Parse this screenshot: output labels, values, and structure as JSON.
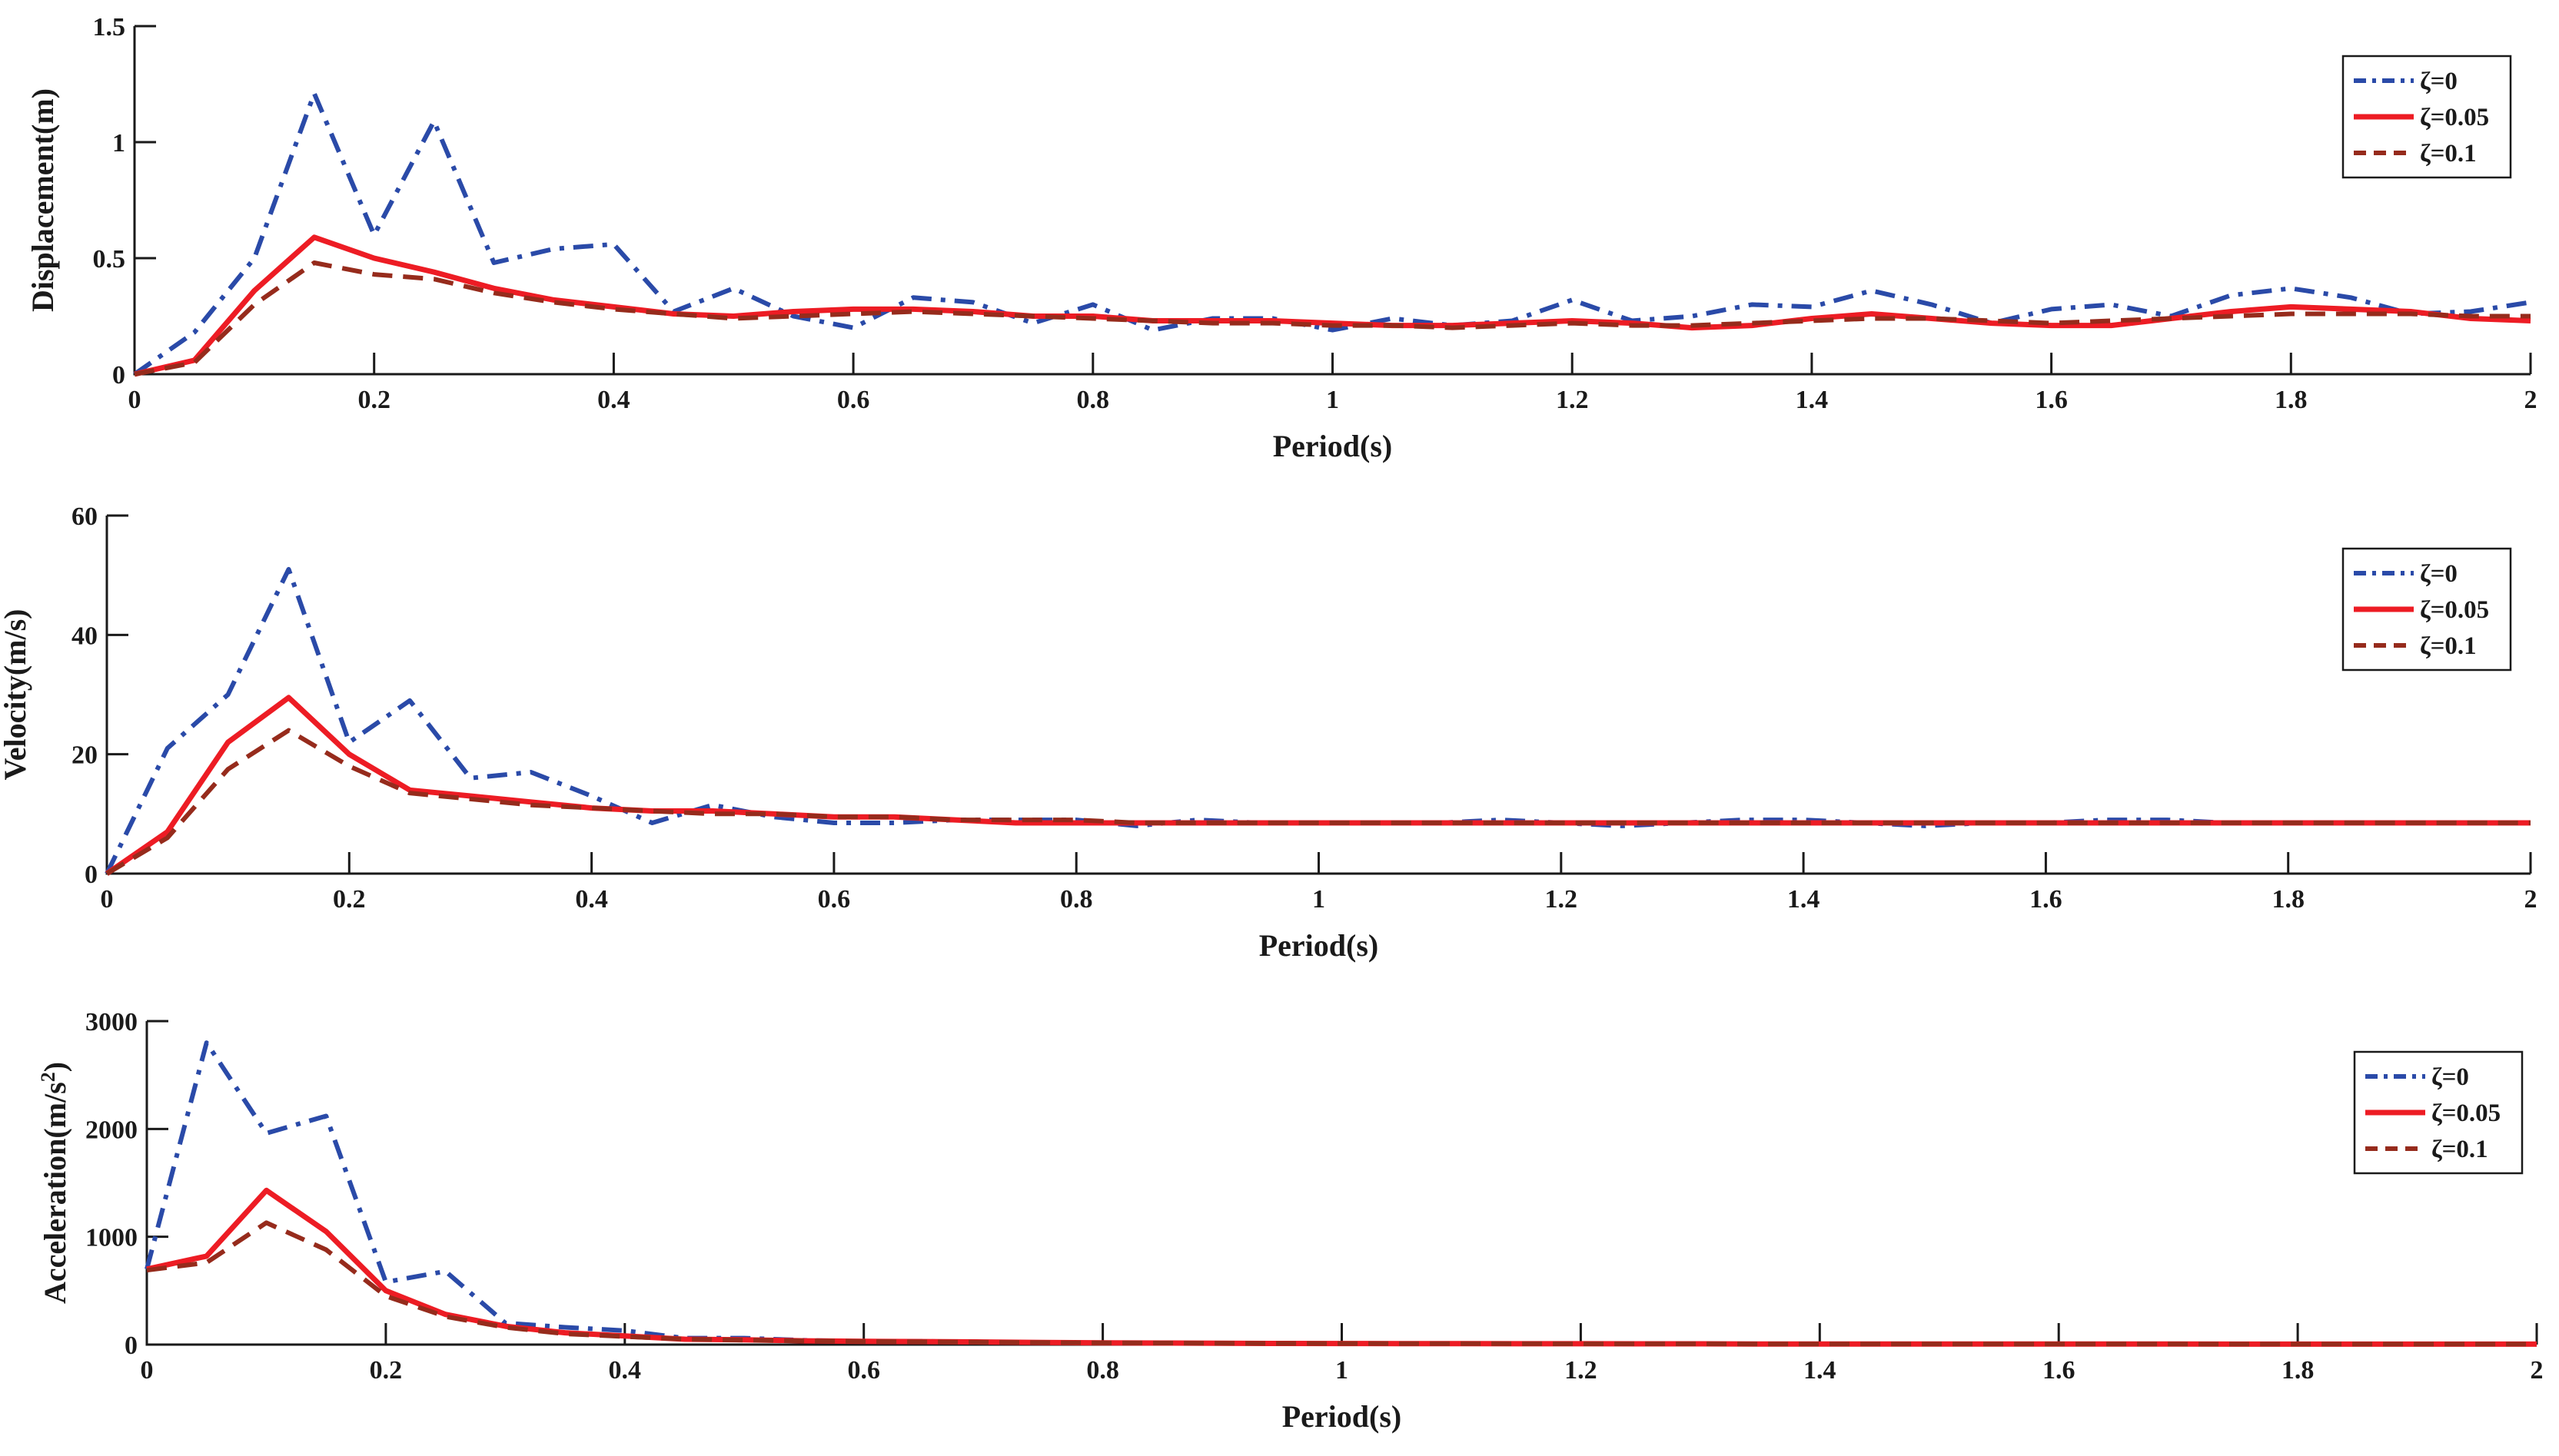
{
  "colors": {
    "zeta0": "#2a4aa8",
    "zeta005": "#ed1c24",
    "zeta01": "#962b1c",
    "axis": "#1a1a1a"
  },
  "legend_placement": "top-right",
  "chart_data": [
    {
      "type": "line",
      "xlabel": "Period(s)",
      "ylabel": "Displacement(m)",
      "ylabel_sup": "",
      "ylabel_tail": "",
      "xlim": [
        0,
        2
      ],
      "ylim": [
        0,
        1.5
      ],
      "xticks": [
        0,
        0.2,
        0.4,
        0.6,
        0.8,
        1,
        1.2,
        1.4,
        1.6,
        1.8,
        2
      ],
      "xticklabels": [
        "0",
        "0.2",
        "0.4",
        "0.6",
        "0.8",
        "1",
        "1.2",
        "1.4",
        "1.6",
        "1.8",
        "2"
      ],
      "yticks": [
        0,
        0.5,
        1,
        1.5
      ],
      "yticklabels": [
        "0",
        "0.5",
        "1",
        "1.5"
      ],
      "grid": false,
      "x": [
        0,
        0.05,
        0.1,
        0.15,
        0.2,
        0.25,
        0.3,
        0.35,
        0.4,
        0.45,
        0.5,
        0.55,
        0.6,
        0.65,
        0.7,
        0.75,
        0.8,
        0.85,
        0.9,
        0.95,
        1,
        1.05,
        1.1,
        1.15,
        1.2,
        1.25,
        1.3,
        1.35,
        1.4,
        1.45,
        1.5,
        1.55,
        1.6,
        1.65,
        1.7,
        1.75,
        1.8,
        1.85,
        1.9,
        1.95,
        2
      ],
      "series": [
        {
          "name": "ζ=0",
          "style": "dashdot",
          "color": "#2a4aa8",
          "values": [
            0,
            0.18,
            0.5,
            1.21,
            0.6,
            1.09,
            0.48,
            0.54,
            0.56,
            0.27,
            0.37,
            0.25,
            0.2,
            0.33,
            0.31,
            0.22,
            0.3,
            0.19,
            0.24,
            0.24,
            0.19,
            0.24,
            0.21,
            0.23,
            0.32,
            0.23,
            0.25,
            0.3,
            0.29,
            0.36,
            0.3,
            0.22,
            0.28,
            0.3,
            0.25,
            0.34,
            0.37,
            0.33,
            0.26,
            0.27,
            0.31
          ]
        },
        {
          "name": "ζ=0.05",
          "style": "solid",
          "color": "#ed1c24",
          "values": [
            0,
            0.06,
            0.36,
            0.59,
            0.5,
            0.44,
            0.37,
            0.32,
            0.29,
            0.26,
            0.25,
            0.27,
            0.28,
            0.28,
            0.27,
            0.25,
            0.25,
            0.23,
            0.23,
            0.23,
            0.22,
            0.21,
            0.21,
            0.22,
            0.23,
            0.22,
            0.2,
            0.21,
            0.24,
            0.26,
            0.24,
            0.22,
            0.21,
            0.21,
            0.24,
            0.27,
            0.29,
            0.28,
            0.27,
            0.24,
            0.23
          ]
        },
        {
          "name": "ζ=0.1",
          "style": "dashed",
          "color": "#962b1c",
          "values": [
            0,
            0.05,
            0.3,
            0.48,
            0.43,
            0.41,
            0.35,
            0.31,
            0.28,
            0.26,
            0.24,
            0.25,
            0.26,
            0.27,
            0.26,
            0.25,
            0.24,
            0.23,
            0.22,
            0.22,
            0.21,
            0.21,
            0.2,
            0.21,
            0.22,
            0.21,
            0.21,
            0.22,
            0.23,
            0.24,
            0.24,
            0.23,
            0.22,
            0.23,
            0.24,
            0.25,
            0.26,
            0.26,
            0.26,
            0.25,
            0.25
          ]
        }
      ]
    },
    {
      "type": "line",
      "xlabel": "Period(s)",
      "ylabel": "Velocity(m/s)",
      "ylabel_sup": "",
      "ylabel_tail": "",
      "xlim": [
        0,
        2
      ],
      "ylim": [
        0,
        60
      ],
      "xticks": [
        0,
        0.2,
        0.4,
        0.6,
        0.8,
        1,
        1.2,
        1.4,
        1.6,
        1.8,
        2
      ],
      "xticklabels": [
        "0",
        "0.2",
        "0.4",
        "0.6",
        "0.8",
        "1",
        "1.2",
        "1.4",
        "1.6",
        "1.8",
        "2"
      ],
      "yticks": [
        0,
        20,
        40,
        60
      ],
      "yticklabels": [
        "0",
        "20",
        "40",
        "60"
      ],
      "grid": false,
      "x": [
        0,
        0.05,
        0.1,
        0.15,
        0.2,
        0.25,
        0.3,
        0.35,
        0.4,
        0.45,
        0.5,
        0.55,
        0.6,
        0.65,
        0.7,
        0.75,
        0.8,
        0.85,
        0.9,
        0.95,
        1,
        1.05,
        1.1,
        1.15,
        1.2,
        1.25,
        1.3,
        1.35,
        1.4,
        1.45,
        1.5,
        1.55,
        1.6,
        1.65,
        1.7,
        1.75,
        1.8,
        1.85,
        1.9,
        1.95,
        2
      ],
      "series": [
        {
          "name": "ζ=0",
          "style": "dashdot",
          "color": "#2a4aa8",
          "values": [
            0,
            21,
            30,
            51,
            22,
            29,
            16,
            17,
            13,
            8.5,
            11.5,
            9.5,
            8.5,
            8.5,
            9,
            9,
            9,
            8,
            9,
            8.5,
            8.5,
            8.5,
            8.5,
            9,
            8.5,
            8,
            8.5,
            9,
            9,
            8.5,
            8,
            8.5,
            8.5,
            9,
            9,
            8.5,
            8.5,
            8.5,
            8.5,
            8.5,
            8.5
          ]
        },
        {
          "name": "ζ=0.05",
          "style": "solid",
          "color": "#ed1c24",
          "values": [
            0,
            7,
            22,
            29.5,
            20,
            14,
            13,
            12,
            11,
            10.5,
            10.5,
            10,
            9.5,
            9.5,
            9,
            8.5,
            8.5,
            8.5,
            8.5,
            8.5,
            8.5,
            8.5,
            8.5,
            8.5,
            8.5,
            8.5,
            8.5,
            8.5,
            8.5,
            8.5,
            8.5,
            8.5,
            8.5,
            8.5,
            8.5,
            8.5,
            8.5,
            8.5,
            8.5,
            8.5,
            8.5
          ]
        },
        {
          "name": "ζ=0.1",
          "style": "dashed",
          "color": "#962b1c",
          "values": [
            0,
            6,
            17.5,
            24,
            18,
            13.5,
            12.5,
            11.5,
            11,
            10.5,
            10,
            10,
            9.5,
            9.5,
            9,
            9,
            9,
            8.5,
            8.5,
            8.5,
            8.5,
            8.5,
            8.5,
            8.5,
            8.5,
            8.5,
            8.5,
            8.5,
            8.5,
            8.5,
            8.5,
            8.5,
            8.5,
            8.5,
            8.5,
            8.5,
            8.5,
            8.5,
            8.5,
            8.5,
            8.5
          ]
        }
      ]
    },
    {
      "type": "line",
      "xlabel": "Period(s)",
      "ylabel": "Acceleration(m/s",
      "ylabel_sup": "2",
      "ylabel_tail": ")",
      "xlim": [
        0,
        2
      ],
      "ylim": [
        0,
        3000
      ],
      "xticks": [
        0,
        0.2,
        0.4,
        0.6,
        0.8,
        1,
        1.2,
        1.4,
        1.6,
        1.8,
        2
      ],
      "xticklabels": [
        "0",
        "0.2",
        "0.4",
        "0.6",
        "0.8",
        "1",
        "1.2",
        "1.4",
        "1.6",
        "1.8",
        "2"
      ],
      "yticks": [
        0,
        1000,
        2000,
        3000
      ],
      "yticklabels": [
        "0",
        "1000",
        "2000",
        "3000"
      ],
      "grid": false,
      "x": [
        0,
        0.05,
        0.1,
        0.15,
        0.2,
        0.25,
        0.3,
        0.35,
        0.4,
        0.45,
        0.5,
        0.55,
        0.6,
        0.65,
        0.7,
        0.75,
        0.8,
        0.85,
        0.9,
        0.95,
        1,
        1.05,
        1.1,
        1.15,
        1.2,
        1.25,
        1.3,
        1.35,
        1.4,
        1.45,
        1.5,
        1.55,
        1.6,
        1.65,
        1.7,
        1.75,
        1.8,
        1.85,
        1.9,
        1.95,
        2
      ],
      "series": [
        {
          "name": "ζ=0",
          "style": "dashdot",
          "color": "#2a4aa8",
          "values": [
            700,
            2800,
            1960,
            2120,
            580,
            680,
            200,
            160,
            130,
            60,
            60,
            40,
            30,
            30,
            25,
            20,
            15,
            15,
            12,
            12,
            10,
            10,
            10,
            8,
            8,
            8,
            8,
            6,
            6,
            6,
            6,
            5,
            5,
            5,
            5,
            5,
            5,
            4,
            4,
            4,
            4
          ]
        },
        {
          "name": "ζ=0.05",
          "style": "solid",
          "color": "#ed1c24",
          "values": [
            700,
            820,
            1430,
            1050,
            500,
            280,
            170,
            110,
            80,
            50,
            45,
            35,
            30,
            28,
            24,
            20,
            16,
            14,
            12,
            11,
            10,
            9,
            9,
            8,
            8,
            7,
            7,
            6,
            6,
            6,
            5,
            5,
            5,
            5,
            5,
            4,
            4,
            4,
            4,
            4,
            4
          ]
        },
        {
          "name": "ζ=0.1",
          "style": "dashed",
          "color": "#962b1c",
          "values": [
            690,
            760,
            1130,
            880,
            450,
            260,
            160,
            100,
            75,
            50,
            42,
            34,
            29,
            26,
            22,
            19,
            16,
            14,
            12,
            11,
            10,
            9,
            9,
            8,
            7,
            7,
            7,
            6,
            6,
            6,
            5,
            5,
            5,
            5,
            5,
            4,
            4,
            4,
            4,
            4,
            4
          ]
        }
      ]
    }
  ]
}
